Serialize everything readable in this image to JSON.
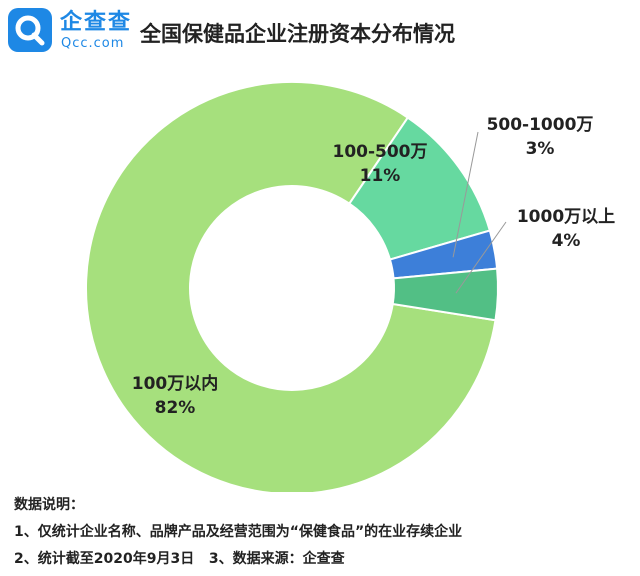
{
  "header": {
    "logo_cn": "企查查",
    "logo_en": "Qcc.com",
    "title": "全国保健品企业注册资本分布情况"
  },
  "colors": {
    "brand_blue": "#1e88e5",
    "slice_main": "#a6e07d",
    "slice_100_500": "#66d9a0",
    "slice_500_1000": "#3d7fd9",
    "slice_1000plus": "#52bf85",
    "leader_line": "#999999",
    "text": "#222222"
  },
  "chart_data": {
    "type": "pie",
    "variant": "donut",
    "title": "全国保健品企业注册资本分布情况",
    "categories": [
      "100万以内",
      "100-500万",
      "500-1000万",
      "1000万以上"
    ],
    "values": [
      82,
      11,
      3,
      4
    ],
    "percent_labels": [
      "82%",
      "11%",
      "3%",
      "4%"
    ],
    "unit": "%"
  },
  "notes": {
    "heading": "数据说明：",
    "line1": "1、仅统计企业名称、品牌产品及经营范围为“保健食品”的在业存续企业",
    "line2a": "2、统计截至2020年9月3日",
    "line2b": "3、数据来源：企查查"
  }
}
